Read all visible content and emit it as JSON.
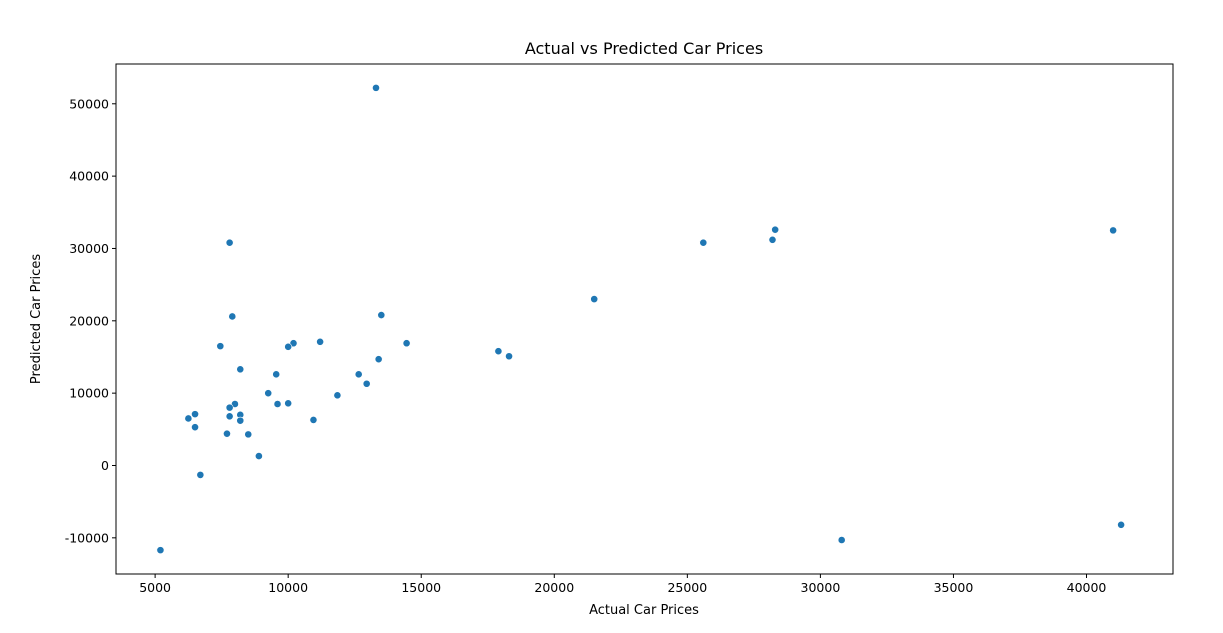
{
  "chart_data": {
    "type": "scatter",
    "title": "Actual vs Predicted Car Prices",
    "xlabel": "Actual Car Prices",
    "ylabel": "Predicted Car Prices",
    "xlim": [
      3530,
      43250
    ],
    "ylim": [
      -15000,
      55500
    ],
    "xticks": [
      5000,
      10000,
      15000,
      20000,
      25000,
      30000,
      35000,
      40000
    ],
    "yticks": [
      -10000,
      0,
      10000,
      20000,
      30000,
      40000,
      50000
    ],
    "grid": false,
    "marker_color": "#1f77b4",
    "points": [
      {
        "x": 13300,
        "y": 52200
      },
      {
        "x": 28300,
        "y": 32600
      },
      {
        "x": 41000,
        "y": 32500
      },
      {
        "x": 28200,
        "y": 31200
      },
      {
        "x": 7800,
        "y": 30800
      },
      {
        "x": 25600,
        "y": 30800
      },
      {
        "x": 21500,
        "y": 23000
      },
      {
        "x": 13500,
        "y": 20800
      },
      {
        "x": 7900,
        "y": 20600
      },
      {
        "x": 11200,
        "y": 17100
      },
      {
        "x": 10200,
        "y": 16900
      },
      {
        "x": 14450,
        "y": 16900
      },
      {
        "x": 7450,
        "y": 16500
      },
      {
        "x": 10000,
        "y": 16400
      },
      {
        "x": 17900,
        "y": 15800
      },
      {
        "x": 18300,
        "y": 15100
      },
      {
        "x": 13400,
        "y": 14700
      },
      {
        "x": 8200,
        "y": 13300
      },
      {
        "x": 9550,
        "y": 12600
      },
      {
        "x": 12650,
        "y": 12600
      },
      {
        "x": 12950,
        "y": 11300
      },
      {
        "x": 9250,
        "y": 10000
      },
      {
        "x": 11850,
        "y": 9700
      },
      {
        "x": 8000,
        "y": 8500
      },
      {
        "x": 9600,
        "y": 8500
      },
      {
        "x": 10000,
        "y": 8600
      },
      {
        "x": 7800,
        "y": 8000
      },
      {
        "x": 6500,
        "y": 7100
      },
      {
        "x": 8200,
        "y": 7000
      },
      {
        "x": 7800,
        "y": 6800
      },
      {
        "x": 6250,
        "y": 6500
      },
      {
        "x": 10950,
        "y": 6300
      },
      {
        "x": 8200,
        "y": 6200
      },
      {
        "x": 6500,
        "y": 5300
      },
      {
        "x": 7700,
        "y": 4400
      },
      {
        "x": 8500,
        "y": 4300
      },
      {
        "x": 8900,
        "y": 1300
      },
      {
        "x": 6700,
        "y": -1300
      },
      {
        "x": 41300,
        "y": -8200
      },
      {
        "x": 30800,
        "y": -10300
      },
      {
        "x": 5200,
        "y": -11700
      }
    ]
  }
}
